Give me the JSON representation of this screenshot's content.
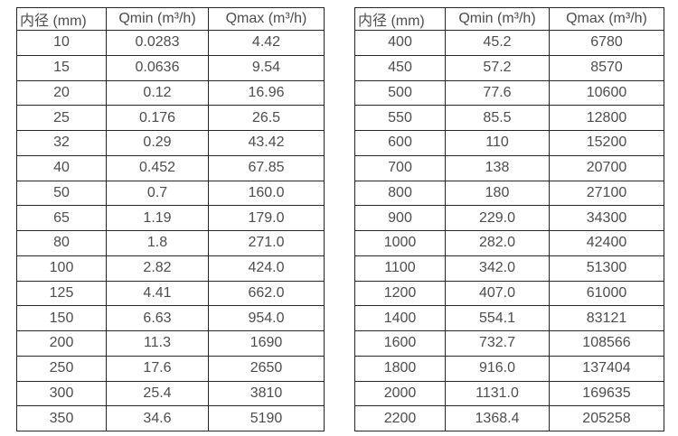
{
  "columns": {
    "diameter": "内径 (mm)",
    "qmin": "Qmin (m³/h)",
    "qmax": "Qmax (m³/h)"
  },
  "left_table": {
    "rows": [
      [
        "10",
        "0.0283",
        "4.42"
      ],
      [
        "15",
        "0.0636",
        "9.54"
      ],
      [
        "20",
        "0.12",
        "16.96"
      ],
      [
        "25",
        "0.176",
        "26.5"
      ],
      [
        "32",
        "0.29",
        "43.42"
      ],
      [
        "40",
        "0.452",
        "67.85"
      ],
      [
        "50",
        "0.7",
        "160.0"
      ],
      [
        "65",
        "1.19",
        "179.0"
      ],
      [
        "80",
        "1.8",
        "271.0"
      ],
      [
        "100",
        "2.82",
        "424.0"
      ],
      [
        "125",
        "4.41",
        "662.0"
      ],
      [
        "150",
        "6.63",
        "954.0"
      ],
      [
        "200",
        "11.3",
        "1690"
      ],
      [
        "250",
        "17.6",
        "2650"
      ],
      [
        "300",
        "25.4",
        "3810"
      ],
      [
        "350",
        "34.6",
        "5190"
      ]
    ]
  },
  "right_table": {
    "rows": [
      [
        "400",
        "45.2",
        "6780"
      ],
      [
        "450",
        "57.2",
        "8570"
      ],
      [
        "500",
        "77.6",
        "10600"
      ],
      [
        "550",
        "85.5",
        "12800"
      ],
      [
        "600",
        "110",
        "15200"
      ],
      [
        "700",
        "138",
        "20700"
      ],
      [
        "800",
        "180",
        "27100"
      ],
      [
        "900",
        "229.0",
        "34300"
      ],
      [
        "1000",
        "282.0",
        "42400"
      ],
      [
        "1100",
        "342.0",
        "51300"
      ],
      [
        "1200",
        "407.0",
        "61000"
      ],
      [
        "1400",
        "554.1",
        "83121"
      ],
      [
        "1600",
        "732.7",
        "108566"
      ],
      [
        "1800",
        "916.0",
        "137404"
      ],
      [
        "2000",
        "1131.0",
        "169635"
      ],
      [
        "2200",
        "1368.4",
        "205258"
      ]
    ]
  },
  "colors": {
    "border": "#262626",
    "text": "#4d4d4d",
    "background": "#ffffff"
  }
}
